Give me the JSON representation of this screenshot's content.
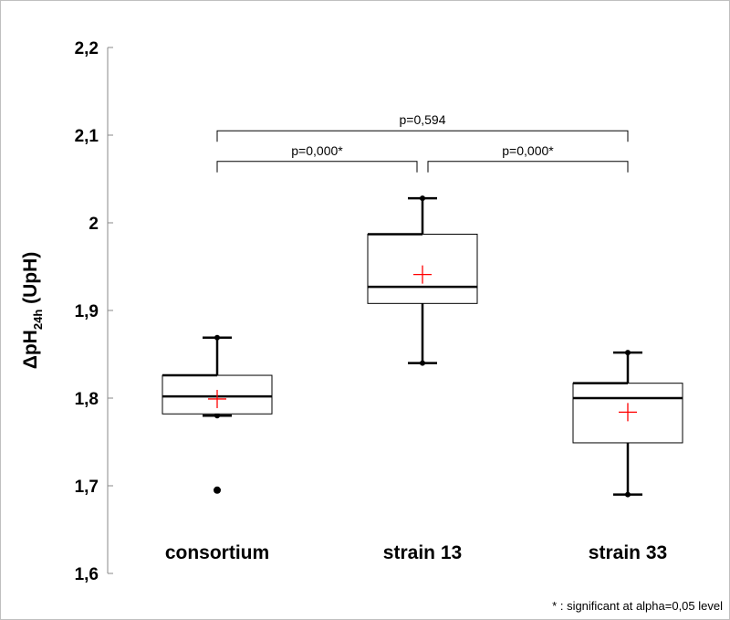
{
  "chart_data": {
    "type": "box",
    "ylabel_main": "ΔpH",
    "ylabel_sub": "24h",
    "ylabel_unit": " (UpH)",
    "ylim": [
      1.6,
      2.2
    ],
    "yticks": [
      1.6,
      1.7,
      1.8,
      1.9,
      2.0,
      2.1,
      2.2
    ],
    "ytick_labels": [
      "1,6",
      "1,7",
      "1,8",
      "1,9",
      "2",
      "2,1",
      "2,2"
    ],
    "categories": [
      "consortium",
      "strain 13",
      "strain 33"
    ],
    "boxes": [
      {
        "name": "consortium",
        "min": 1.78,
        "q1": 1.782,
        "median": 1.802,
        "q3": 1.826,
        "max": 1.869,
        "mean": 1.799,
        "outliers": [
          1.695
        ]
      },
      {
        "name": "strain 13",
        "min": 1.84,
        "q1": 1.908,
        "median": 1.927,
        "q3": 1.987,
        "max": 2.028,
        "mean": 1.941,
        "outliers": []
      },
      {
        "name": "strain 33",
        "min": 1.69,
        "q1": 1.749,
        "median": 1.8,
        "q3": 1.817,
        "max": 1.852,
        "mean": 1.784,
        "outliers": []
      }
    ],
    "comparisons": [
      {
        "from": 0,
        "to": 1,
        "label": "p=0,000*",
        "y": 2.07
      },
      {
        "from": 1,
        "to": 2,
        "label": "p=0,000*",
        "y": 2.07
      },
      {
        "from": 0,
        "to": 2,
        "label": "p=0,594",
        "y": 2.105
      }
    ],
    "footnote": "* : significant at alpha=0,05 level",
    "colors": {
      "box": "#000000",
      "mean_marker": "#ff0000",
      "axis": "#888888"
    }
  }
}
